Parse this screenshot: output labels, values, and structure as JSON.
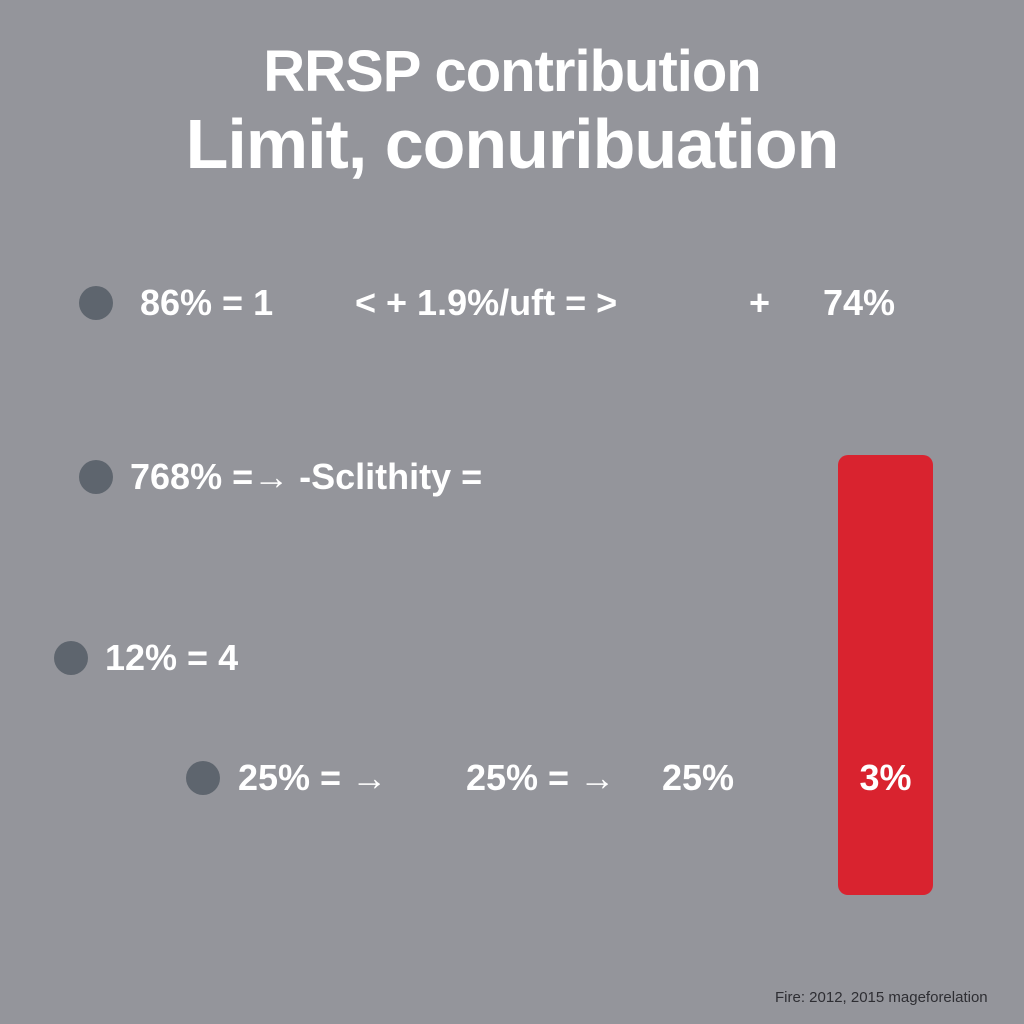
{
  "header": {
    "title_line1": "RRSP contribution",
    "title_line2": "Limit, conuribuation"
  },
  "rows": [
    {
      "items": [
        "86% = 1",
        "< + 1.9%/uft = >",
        "+",
        "74%"
      ]
    },
    {
      "items": [
        "768% =→ -Sclithity ="
      ]
    },
    {
      "items": [
        "12% = 4"
      ]
    },
    {
      "items": [
        "25% = →",
        "25% = →",
        "25%"
      ]
    }
  ],
  "highlight": {
    "label": "3%"
  },
  "footer": {
    "text": "Fire: 2012, 2015 mageforelation"
  }
}
